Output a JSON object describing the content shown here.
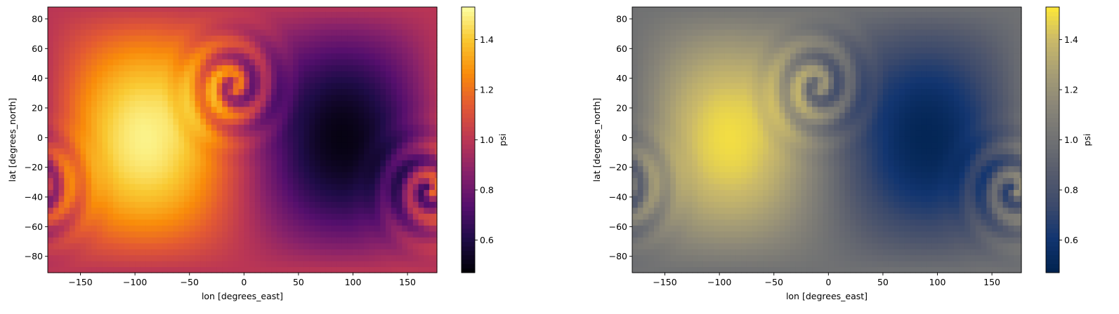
{
  "chart_data": [
    {
      "type": "heatmap",
      "colormap": "inferno",
      "xlabel": "lon [degrees_east]",
      "ylabel": "lat [degrees_north]",
      "xlim": [
        -180,
        177
      ],
      "ylim": [
        -91,
        88
      ],
      "xticks": [
        -150,
        -100,
        -50,
        0,
        50,
        100,
        150
      ],
      "yticks": [
        -80,
        -60,
        -40,
        -20,
        0,
        20,
        40,
        60,
        80
      ],
      "colorbar": {
        "label": "psi",
        "range": [
          0.47,
          1.53
        ],
        "ticks": [
          0.6,
          0.8,
          1.0,
          1.2,
          1.4
        ]
      },
      "field": "solid-body rotation psi field with two spiral vortices, cell size 5° lon x 4° lat"
    },
    {
      "type": "heatmap",
      "colormap": "cividis",
      "xlabel": "lon [degrees_east]",
      "ylabel": "lat [degrees_north]",
      "xlim": [
        -180,
        177
      ],
      "ylim": [
        -91,
        88
      ],
      "xticks": [
        -150,
        -100,
        -50,
        0,
        50,
        100,
        150
      ],
      "yticks": [
        -80,
        -60,
        -40,
        -20,
        0,
        20,
        40,
        60,
        80
      ],
      "colorbar": {
        "label": "psi",
        "range": [
          0.47,
          1.53
        ],
        "ticks": [
          0.6,
          0.8,
          1.0,
          1.2,
          1.4
        ]
      },
      "field": "same psi field as panel 1"
    }
  ]
}
